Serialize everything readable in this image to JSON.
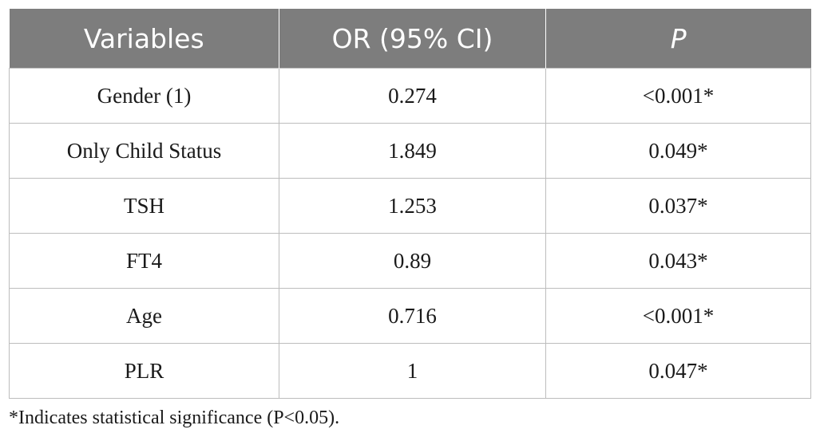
{
  "table": {
    "headers": [
      "Variables",
      "OR (95% CI)",
      "P"
    ],
    "rows": [
      [
        "Gender (1)",
        "0.274",
        "<0.001*"
      ],
      [
        "Only Child Status",
        "1.849",
        "0.049*"
      ],
      [
        "TSH",
        "1.253",
        "0.037*"
      ],
      [
        "FT4",
        "0.89",
        "0.043*"
      ],
      [
        "Age",
        "0.716",
        "<0.001*"
      ],
      [
        "PLR",
        "1",
        "0.047*"
      ]
    ]
  },
  "footnote": "*Indicates statistical significance (P<0.05).",
  "colors": {
    "header_bg": "#7d7d7d",
    "header_text": "#ffffff",
    "border": "#bdbdbd"
  }
}
